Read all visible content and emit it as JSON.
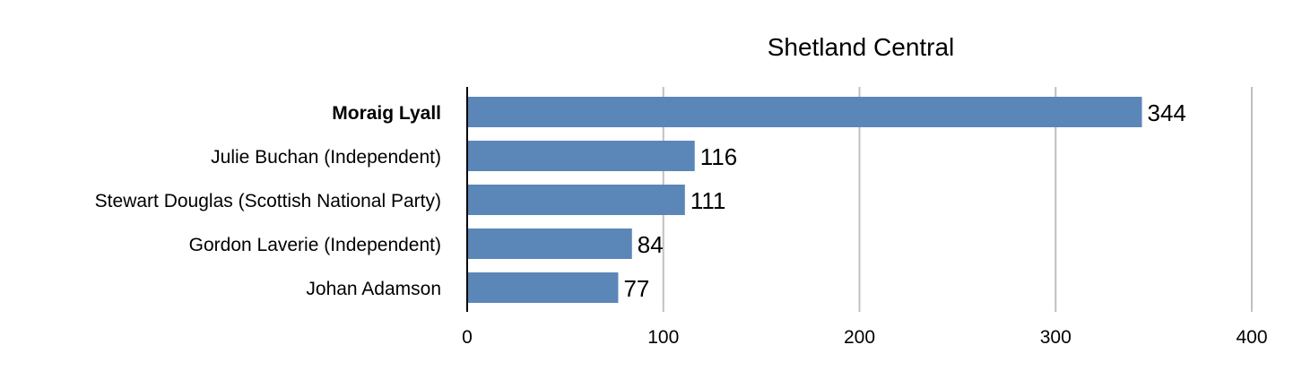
{
  "chart_data": {
    "type": "bar",
    "orientation": "horizontal",
    "title": "Shetland Central",
    "xlabel": "",
    "ylabel": "",
    "categories": [
      "Moraig Lyall",
      "Julie Buchan (Independent)",
      "Stewart Douglas (Scottish National Party)",
      "Gordon Laverie (Independent)",
      "Johan Adamson"
    ],
    "bold_categories": [
      "Moraig Lyall"
    ],
    "values": [
      344,
      116,
      111,
      84,
      77
    ],
    "data_labels": [
      "344",
      "116",
      "111",
      "84",
      "77"
    ],
    "xlim": [
      0,
      400
    ],
    "xticks": [
      0,
      100,
      200,
      300,
      400
    ],
    "xtick_labels": [
      "0",
      "100",
      "200",
      "300",
      "400"
    ],
    "grid": "vertical",
    "legend": "none",
    "bar_color": "#5b86b8",
    "grid_color": "#c0c0c0",
    "axis_color": "#000000"
  }
}
